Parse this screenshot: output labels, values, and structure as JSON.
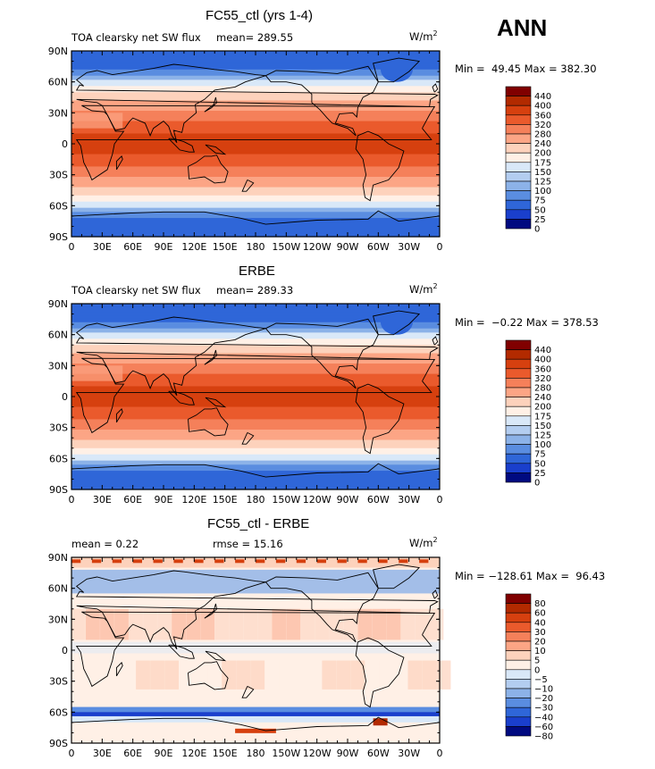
{
  "season": "ANN",
  "panels": [
    {
      "title": "FC55_ctl (yrs 1-4)",
      "left_label": "TOA clearsky net SW flux",
      "mean_label": "mean= 289.55",
      "units_main": "W/m",
      "units_sup": "2",
      "minmax": "Min =  49.45 Max = 382.30",
      "colorbar": [
        "440",
        "400",
        "360",
        "320",
        "280",
        "240",
        "200",
        "175",
        "150",
        "125",
        "100",
        "75",
        "50",
        "25",
        "0"
      ],
      "kind": "abs"
    },
    {
      "title": "ERBE",
      "left_label": "TOA clearsky net SW flux",
      "mean_label": "mean= 289.33",
      "units_main": "W/m",
      "units_sup": "2",
      "minmax": "Min =  −0.22 Max = 378.53",
      "colorbar": [
        "440",
        "400",
        "360",
        "320",
        "280",
        "240",
        "200",
        "175",
        "150",
        "125",
        "100",
        "75",
        "50",
        "25",
        "0"
      ],
      "kind": "abs"
    },
    {
      "title": "FC55_ctl - ERBE",
      "left_label": "mean =    0.22",
      "mean_label": "rmse =  15.16",
      "units_main": "W/m",
      "units_sup": "2",
      "minmax": "Min = −128.61 Max =  96.43",
      "colorbar": [
        "80",
        "60",
        "40",
        "30",
        "20",
        "10",
        "5",
        "0",
        "−5",
        "−10",
        "−20",
        "−30",
        "−40",
        "−60",
        "−80"
      ],
      "kind": "diff"
    }
  ],
  "lat_labels": [
    "90N",
    "60N",
    "30N",
    "0",
    "30S",
    "60S",
    "90S"
  ],
  "lon_labels": [
    "0",
    "30E",
    "60E",
    "90E",
    "120E",
    "150E",
    "180",
    "150W",
    "120W",
    "90W",
    "60W",
    "30W",
    "0"
  ],
  "colors": {
    "abs_scale": [
      "#800000",
      "#b22a00",
      "#d6400f",
      "#ea5a2c",
      "#f5805a",
      "#fca585",
      "#fdd2bc",
      "#fff0e6",
      "#d9e8f8",
      "#b3cdf0",
      "#8cb2e8",
      "#5a8de0",
      "#2f66d8",
      "#1a3fcc",
      "#000a80"
    ],
    "diff_scale": [
      "#800000",
      "#b22a00",
      "#d6400f",
      "#ea5a2c",
      "#f5805a",
      "#fca585",
      "#fdd2bc",
      "#fff0e6",
      "#d9e8f8",
      "#b3cdf0",
      "#8cb2e8",
      "#5a8de0",
      "#2f66d8",
      "#1a3fcc",
      "#000a80"
    ]
  }
}
